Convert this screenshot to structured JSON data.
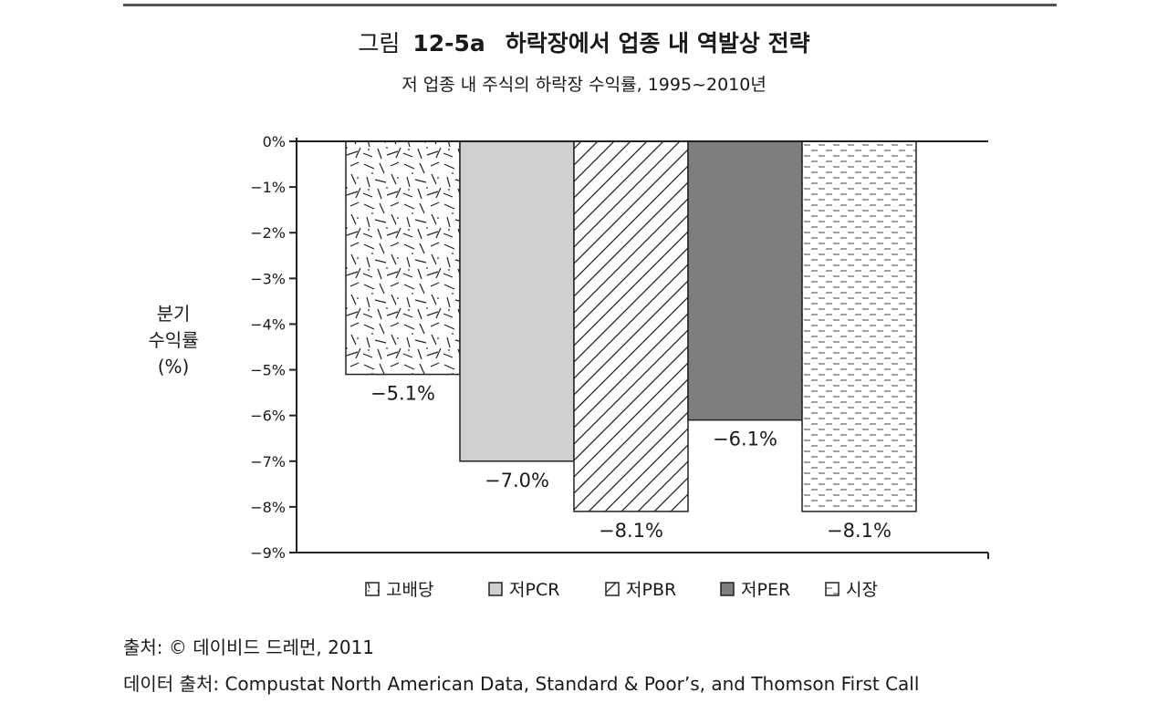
{
  "header": {
    "figure_prefix": "그림",
    "figure_number": "12-5a",
    "title": "하락장에서 업종 내 역발상 전략",
    "subtitle": "저 업종 내 주식의 하락장 수익률, 1995~2010년"
  },
  "chart_data": {
    "type": "bar",
    "ylabel_lines": [
      "분기",
      "수익률",
      "(%)"
    ],
    "ylim": [
      -9,
      0
    ],
    "yticks": [
      "0%",
      "−1%",
      "−2%",
      "−3%",
      "−4%",
      "−5%",
      "−6%",
      "−7%",
      "−8%",
      "−9%"
    ],
    "categories": [
      "고배당",
      "저PCR",
      "저PBR",
      "저PER",
      "시장"
    ],
    "values": [
      -5.1,
      -7.0,
      -8.1,
      -6.1,
      -8.1
    ],
    "data_labels": [
      "−5.1%",
      "−7.0%",
      "−8.1%",
      "−6.1%",
      "−8.1%"
    ],
    "fills": [
      "random-dash-pattern",
      "light-gray",
      "diagonal-hatch",
      "dark-gray",
      "dashed-horizontal-pattern"
    ],
    "colors": {
      "light_gray": "#d0d0d0",
      "dark_gray": "#7e7e7e",
      "stroke": "#222222"
    },
    "legend_position": "bottom-center",
    "grid": false
  },
  "footer": {
    "source": "출처: © 데이비드 드레먼, 2011",
    "data_source": "데이터 출처: Compustat North American Data, Standard & Poor’s, and Thomson First Call"
  }
}
